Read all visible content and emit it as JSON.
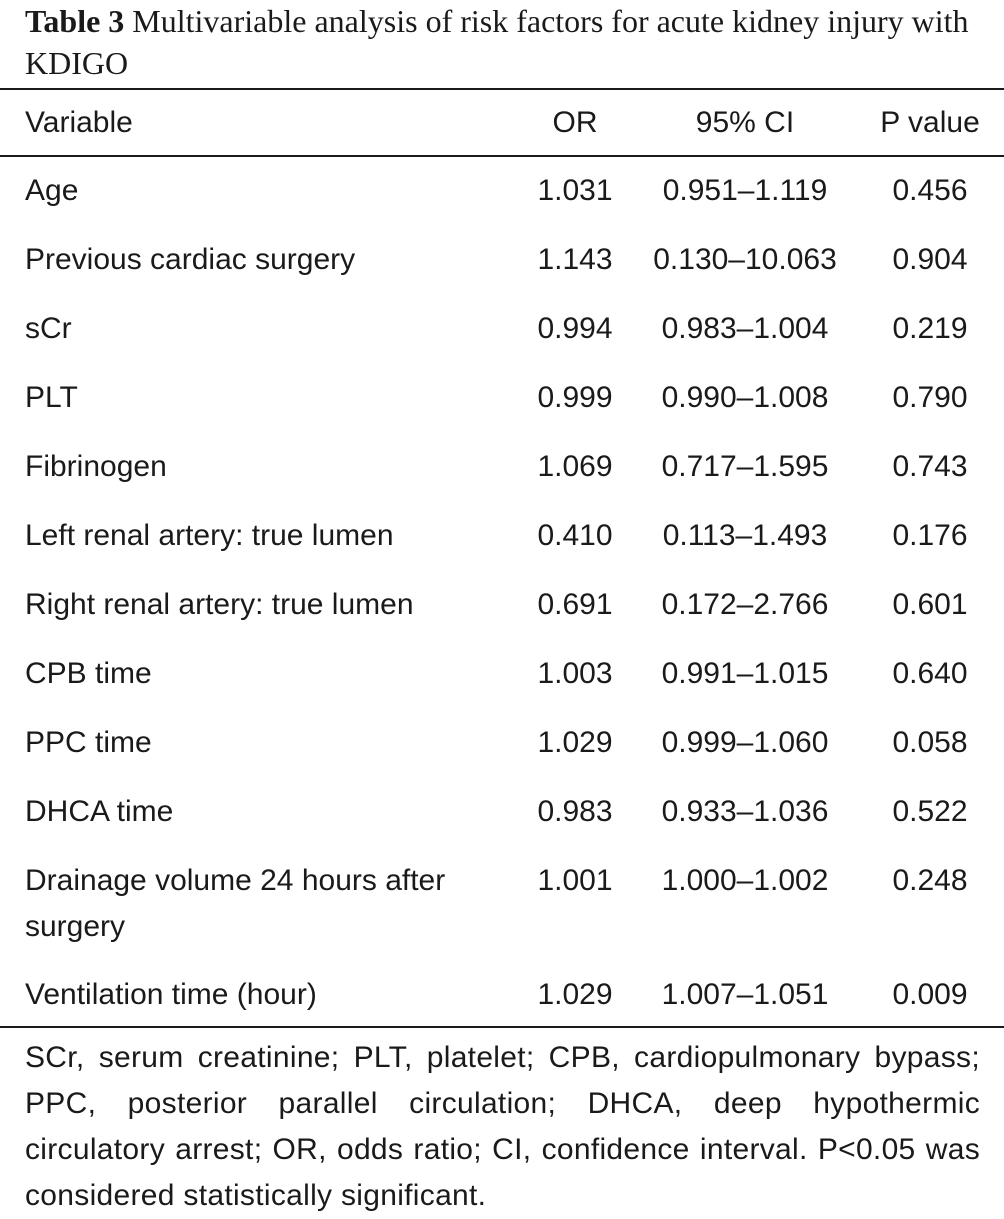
{
  "caption": {
    "label": "Table 3",
    "text": "Multivariable analysis of risk factors for acute kidney injury with KDIGO"
  },
  "table": {
    "headers": {
      "variable": "Variable",
      "or": "OR",
      "ci": "95% CI",
      "p": "P value"
    },
    "rows": [
      {
        "variable": "Age",
        "or": "1.031",
        "ci": "0.951–1.119",
        "p": "0.456"
      },
      {
        "variable": "Previous cardiac surgery",
        "or": "1.143",
        "ci": "0.130–10.063",
        "p": "0.904"
      },
      {
        "variable": "sCr",
        "or": "0.994",
        "ci": "0.983–1.004",
        "p": "0.219"
      },
      {
        "variable": "PLT",
        "or": "0.999",
        "ci": "0.990–1.008",
        "p": "0.790"
      },
      {
        "variable": "Fibrinogen",
        "or": "1.069",
        "ci": "0.717–1.595",
        "p": "0.743"
      },
      {
        "variable": "Left renal artery: true lumen",
        "or": "0.410",
        "ci": "0.113–1.493",
        "p": "0.176"
      },
      {
        "variable": "Right renal artery: true lumen",
        "or": "0.691",
        "ci": "0.172–2.766",
        "p": "0.601"
      },
      {
        "variable": "CPB time",
        "or": "1.003",
        "ci": "0.991–1.015",
        "p": "0.640"
      },
      {
        "variable": "PPC time",
        "or": "1.029",
        "ci": "0.999–1.060",
        "p": "0.058"
      },
      {
        "variable": "DHCA time",
        "or": "0.983",
        "ci": "0.933–1.036",
        "p": "0.522"
      },
      {
        "variable": "Drainage volume 24 hours after surgery",
        "or": "1.001",
        "ci": "1.000–1.002",
        "p": "0.248"
      },
      {
        "variable": "Ventilation time (hour)",
        "or": "1.029",
        "ci": "1.007–1.051",
        "p": "0.009"
      }
    ]
  },
  "footnote": "SCr, serum creatinine; PLT, platelet; CPB, cardiopulmonary bypass; PPC, posterior parallel circulation; DHCA, deep hypothermic circulatory arrest; OR, odds ratio; CI, confidence interval. P<0.05 was considered statistically significant."
}
